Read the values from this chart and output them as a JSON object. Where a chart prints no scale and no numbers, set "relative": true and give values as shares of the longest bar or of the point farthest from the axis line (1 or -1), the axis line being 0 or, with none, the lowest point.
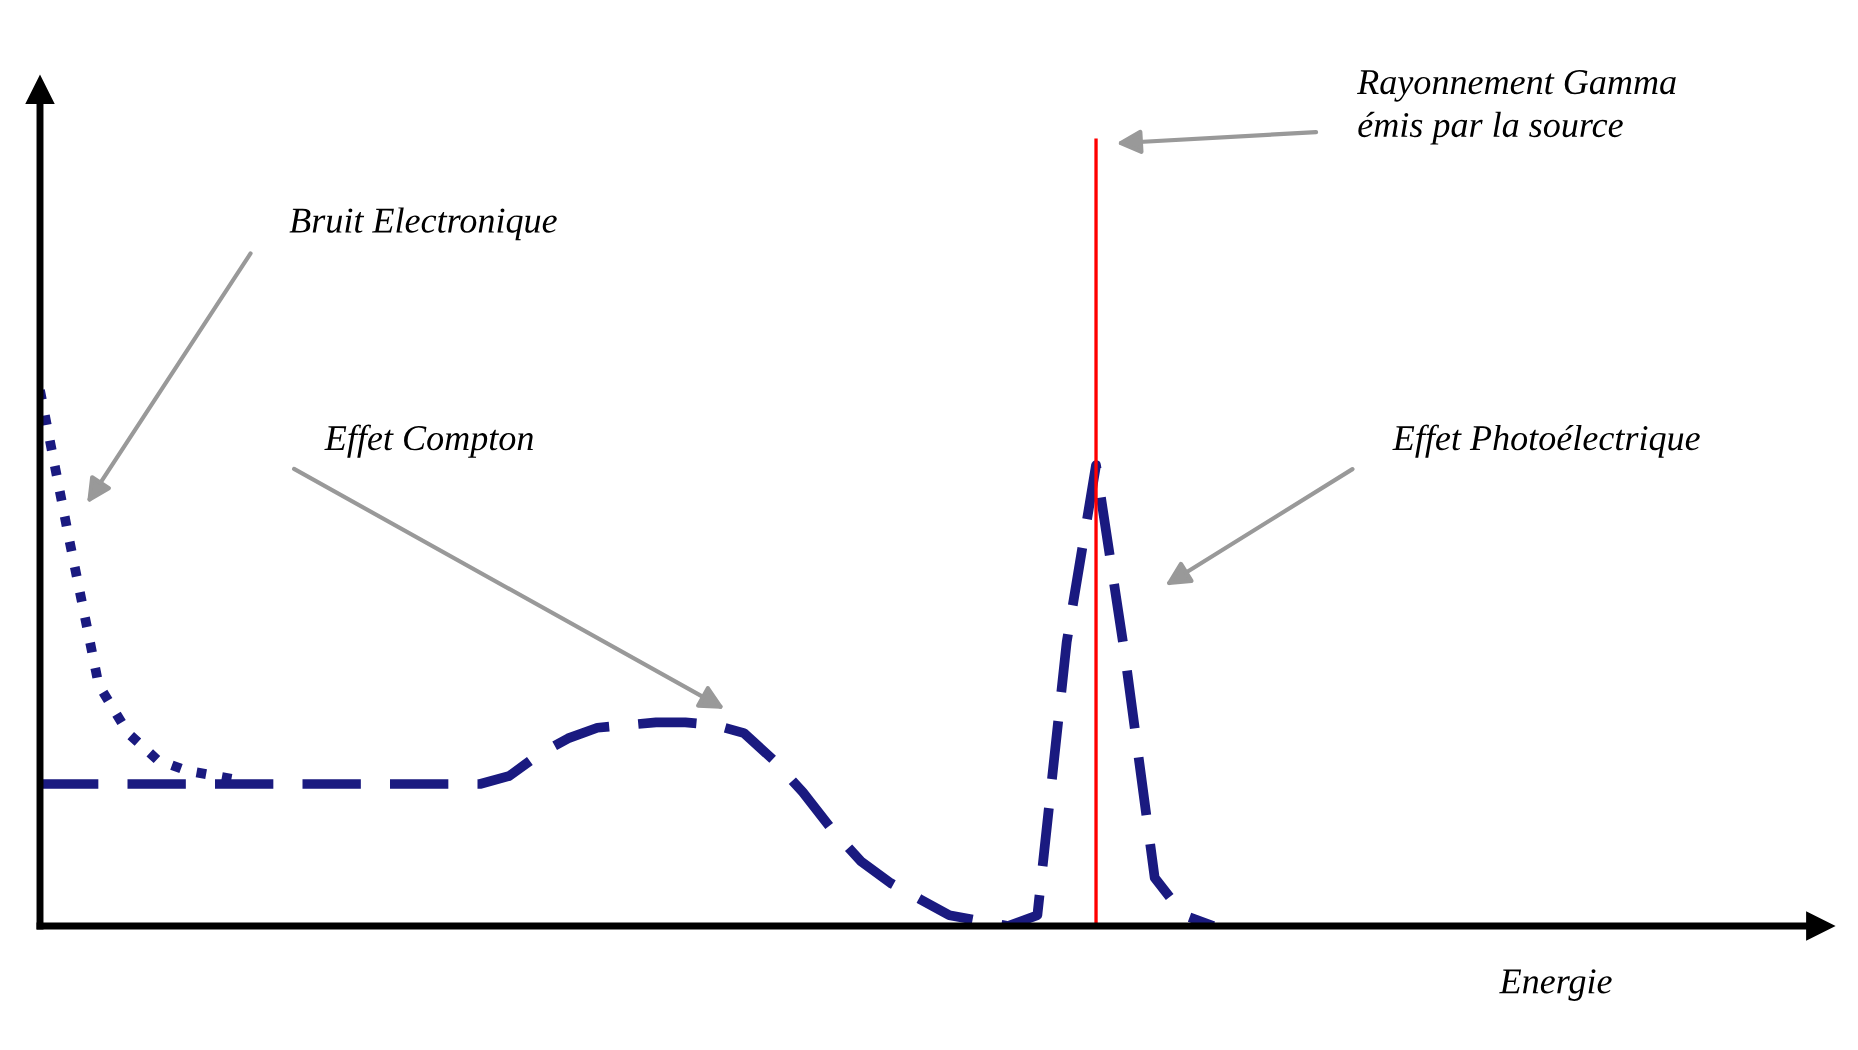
{
  "chart_data": {
    "type": "line",
    "relative": true,
    "categories": [
      null,
      null,
      null,
      null,
      null,
      null,
      null,
      null,
      null,
      null,
      null,
      null,
      null,
      null,
      null,
      null,
      null,
      null,
      null,
      null,
      null,
      null,
      null,
      null,
      null,
      null,
      null,
      null,
      null,
      null,
      null,
      null,
      null,
      null,
      null,
      null,
      null,
      null,
      null,
      null,
      null
    ],
    "series": [
      {
        "color": "#1a1a80",
        "line_style": "dotted",
        "values": [
          1.0,
          0.72,
          0.45,
          0.36,
          0.31,
          0.29,
          0.28,
          0.27,
          null,
          null,
          null,
          null,
          null,
          null,
          null,
          null,
          null,
          null,
          null,
          null,
          null,
          null,
          null,
          null,
          null,
          null,
          null,
          null,
          null,
          null,
          null,
          null,
          null,
          null,
          null,
          null,
          null,
          null,
          null,
          null,
          null
        ]
      },
      {
        "color": "#1a1a80",
        "line_style": "dashed",
        "values": [
          0.265,
          0.265,
          0.265,
          0.265,
          0.265,
          0.265,
          0.265,
          0.265,
          0.265,
          0.265,
          0.265,
          0.265,
          0.265,
          0.265,
          0.265,
          0.265,
          0.28,
          0.32,
          0.35,
          0.37,
          0.375,
          0.38,
          0.38,
          0.375,
          0.36,
          0.31,
          0.25,
          0.18,
          0.12,
          0.08,
          0.05,
          0.02,
          0.01,
          0,
          0.02,
          0.53,
          0.86,
          0.5,
          0.09,
          0.02,
          0
        ]
      }
    ],
    "annotations": [
      "Bruit Electronique",
      "Effet Compton",
      "Rayonnement Gamma\némis par la source",
      "Effet Photoélectrique",
      "Energie"
    ],
    "legend": false,
    "marker": "none"
  }
}
